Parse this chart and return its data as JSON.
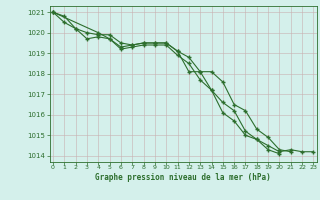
{
  "title": "Graphe pression niveau de la mer (hPa)",
  "background_color": "#d4f0eb",
  "grid_color": "#c8b0b0",
  "line_color": "#2d6e2d",
  "x_values": [
    0,
    1,
    2,
    3,
    4,
    5,
    6,
    7,
    8,
    9,
    10,
    11,
    12,
    13,
    14,
    15,
    16,
    17,
    18,
    19,
    20,
    21,
    22,
    23
  ],
  "line1": [
    1021.0,
    1020.8,
    1020.2,
    1019.7,
    1019.8,
    1019.7,
    1019.3,
    1019.4,
    1019.5,
    1019.5,
    1019.5,
    1019.1,
    1018.1,
    1018.1,
    1017.2,
    1016.6,
    1016.2,
    1015.2,
    1014.8,
    1014.3,
    1014.1,
    null,
    null,
    null
  ],
  "line2": [
    1021.0,
    1020.5,
    1020.2,
    1020.0,
    1019.9,
    1019.9,
    1019.5,
    1019.4,
    1019.5,
    1019.5,
    1019.5,
    1019.1,
    1018.8,
    1018.1,
    1018.1,
    1017.6,
    1016.5,
    1016.2,
    1015.3,
    1014.9,
    1014.3,
    1014.2,
    null,
    null
  ],
  "line3": [
    1021.0,
    null,
    null,
    null,
    1020.0,
    1019.7,
    1019.2,
    1019.3,
    1019.4,
    1019.4,
    1019.4,
    1018.9,
    1018.5,
    1017.7,
    1017.2,
    1016.1,
    1015.7,
    1015.0,
    1014.8,
    1014.5,
    1014.2,
    1014.3,
    1014.2,
    1014.2
  ],
  "ylim": [
    1013.7,
    1021.3
  ],
  "xlim": [
    -0.3,
    23.3
  ],
  "yticks": [
    1014,
    1015,
    1016,
    1017,
    1018,
    1019,
    1020,
    1021
  ],
  "xticks": [
    0,
    1,
    2,
    3,
    4,
    5,
    6,
    7,
    8,
    9,
    10,
    11,
    12,
    13,
    14,
    15,
    16,
    17,
    18,
    19,
    20,
    21,
    22,
    23
  ]
}
